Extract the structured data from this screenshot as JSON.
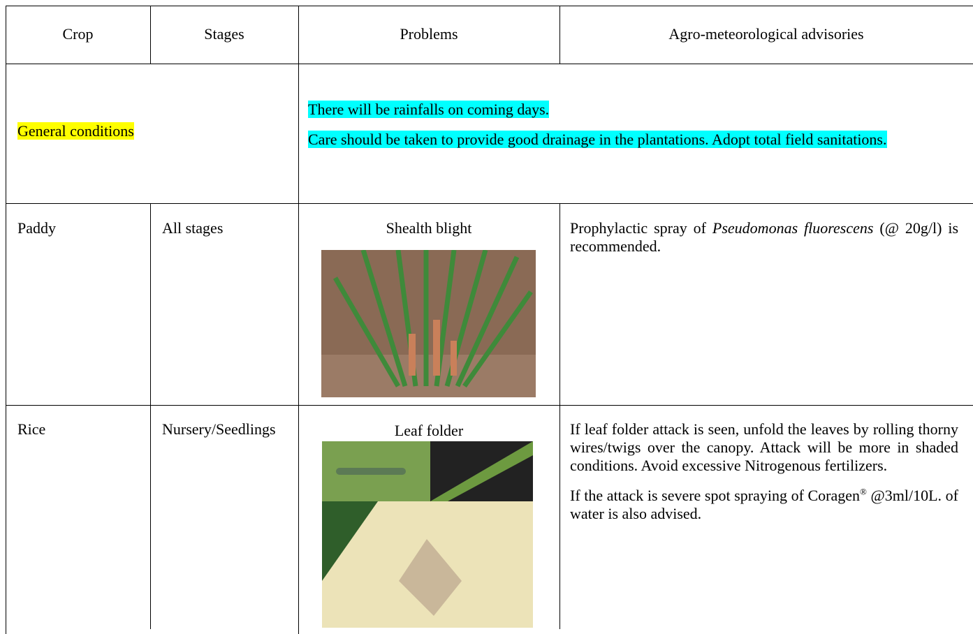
{
  "table": {
    "header": [
      "Crop",
      "Stages",
      "Problems",
      "Agro-meteorological advisories"
    ],
    "general": {
      "label": "General conditions",
      "advisories": [
        "There will be rainfalls on coming days.",
        "Care should be taken to provide good drainage in the plantations.  Adopt total field sanitations."
      ]
    },
    "rows": [
      {
        "crop": "Paddy",
        "stage": "All stages",
        "problem": "Shealth blight",
        "advisory": [
          [
            "Prophylactic spray of ",
            "Pseudomonas fluorescens",
            " (@ 20g/l) is recommended."
          ]
        ]
      },
      {
        "crop": "Rice",
        "stage": "Nursery/Seedlings",
        "problem": "Leaf folder",
        "advisory": [
          [
            "If leaf folder attack is seen, unfold the leaves by rolling thorny wires/twigs over the canopy. Attack will be more in shaded conditions. Avoid excessive Nitrogenous fertilizers."
          ],
          [
            " If the attack is severe spot spraying of Coragen",
            "®",
            " @3ml/10L. of water is also advised."
          ]
        ]
      }
    ]
  }
}
